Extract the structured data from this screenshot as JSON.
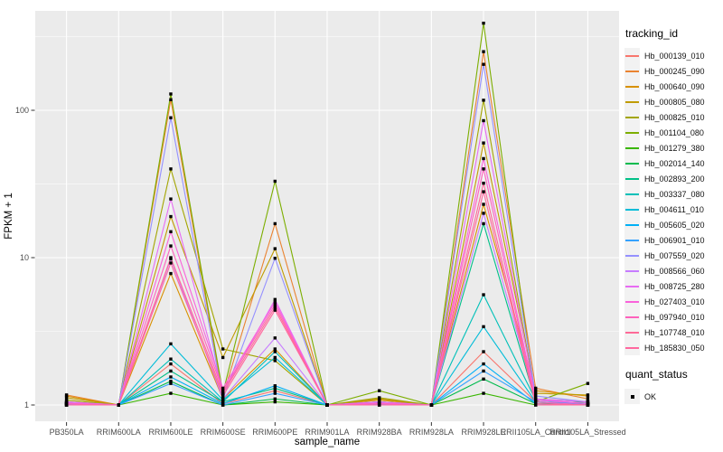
{
  "chart_data": {
    "type": "line",
    "title": "",
    "xlabel": "sample_name",
    "ylabel": "FPKM + 1",
    "y_scale": "log10",
    "y_ticks": [
      1,
      10,
      100
    ],
    "ylim": [
      0.9,
      500
    ],
    "grid": true,
    "legend_position": "right",
    "legend_title": "tracking_id",
    "legend2_title": "quant_status",
    "legend2_items": [
      "OK"
    ],
    "colors": {
      "panel_bg": "#EBEBEB",
      "grid": "#FFFFFF",
      "point": "#000000",
      "axis_text": "#4D4D4D",
      "tick": "#333333",
      "key_bg": "#F2F2F2"
    },
    "x_categories": [
      "PB350LA",
      "RRIM600LA",
      "RRIM600LE",
      "RRIM600SE",
      "RRIM600PE",
      "RRIM901LA",
      "RRIM928BA",
      "RRIM928LA",
      "RRIM928LE",
      "RRII105LA_Control",
      "RRII105LA_Stressed"
    ],
    "series": [
      {
        "name": "Hb_000139_010",
        "color": "#F8766D",
        "values": [
          1.05,
          1,
          1.9,
          1.02,
          1.25,
          1,
          1.05,
          1,
          2.3,
          1.05,
          1.02
        ]
      },
      {
        "name": "Hb_000245_090",
        "color": "#EA8331",
        "values": [
          1.17,
          1,
          118,
          1.15,
          17,
          1,
          1.1,
          1,
          250,
          1.3,
          1.1
        ]
      },
      {
        "name": "Hb_000640_090",
        "color": "#D89000",
        "values": [
          1.15,
          1,
          7.8,
          1.1,
          2.4,
          1,
          1.08,
          1,
          23,
          1.25,
          1.15
        ]
      },
      {
        "name": "Hb_000805_080",
        "color": "#C09B00",
        "values": [
          1.12,
          1,
          19,
          2.1,
          11.5,
          1,
          1.1,
          1,
          60,
          1.2,
          1.17
        ]
      },
      {
        "name": "Hb_000825_010",
        "color": "#A3A500",
        "values": [
          1.08,
          1,
          40,
          2.4,
          2.0,
          1,
          1.12,
          1,
          117,
          1.1,
          1.05
        ]
      },
      {
        "name": "Hb_001104_080",
        "color": "#7CAE00",
        "values": [
          1.02,
          1,
          129,
          1.2,
          33,
          1,
          1.25,
          1,
          390,
          1.05,
          1.4
        ]
      },
      {
        "name": "Hb_001279_380",
        "color": "#39B600",
        "values": [
          1.0,
          1,
          1.2,
          1.0,
          1.05,
          1,
          1.02,
          1,
          1.2,
          1.0,
          1.02
        ]
      },
      {
        "name": "Hb_002014_140",
        "color": "#00BB4E",
        "values": [
          1.0,
          1,
          1.45,
          1.0,
          1.1,
          1,
          1.05,
          1,
          1.5,
          1.02,
          1.05
        ]
      },
      {
        "name": "Hb_002893_200",
        "color": "#00C087",
        "values": [
          1.02,
          1,
          1.7,
          1.05,
          1.3,
          1,
          1.02,
          1,
          17,
          1.05,
          1.0
        ]
      },
      {
        "name": "Hb_003337_080",
        "color": "#00C0B8",
        "values": [
          1.03,
          1,
          2.05,
          1.05,
          2.3,
          1,
          1.05,
          1,
          5.6,
          1.08,
          1.02
        ]
      },
      {
        "name": "Hb_004611_010",
        "color": "#00BCD8",
        "values": [
          1.02,
          1,
          2.6,
          1.08,
          2.1,
          1,
          1.02,
          1,
          3.4,
          1.05,
          1.0
        ]
      },
      {
        "name": "Hb_005605_020",
        "color": "#00B0F6",
        "values": [
          1.0,
          1,
          1.55,
          1.02,
          1.35,
          1,
          1.0,
          1,
          1.9,
          1.02,
          1.0
        ]
      },
      {
        "name": "Hb_006901_010",
        "color": "#35A2FF",
        "values": [
          1.02,
          1,
          1.4,
          1.0,
          1.2,
          1,
          1.02,
          1,
          1.7,
          1.05,
          1.02
        ]
      },
      {
        "name": "Hb_007559_020",
        "color": "#9590FF",
        "values": [
          1.05,
          1,
          89,
          1.1,
          9.9,
          1,
          1.05,
          1,
          205,
          1.15,
          1.05
        ]
      },
      {
        "name": "Hb_008566_060",
        "color": "#C77CFF",
        "values": [
          1.02,
          1,
          9.8,
          1.1,
          2.85,
          1,
          1.02,
          1,
          20,
          1.1,
          1.02
        ]
      },
      {
        "name": "Hb_008725_280",
        "color": "#E76BF3",
        "values": [
          1.05,
          1,
          25,
          1.2,
          5.2,
          1,
          1.05,
          1,
          85,
          1.1,
          1.05
        ]
      },
      {
        "name": "Hb_027403_010",
        "color": "#FA62DB",
        "values": [
          1.03,
          1,
          15,
          1.3,
          5.0,
          1,
          1.03,
          1,
          47,
          1.08,
          1.02
        ]
      },
      {
        "name": "Hb_097940_010",
        "color": "#FF62BC",
        "values": [
          1.02,
          1,
          12,
          1.25,
          4.8,
          1,
          1.02,
          1,
          40,
          1.05,
          1.0
        ]
      },
      {
        "name": "Hb_107748_010",
        "color": "#FF6A98",
        "values": [
          1.0,
          1,
          10,
          1.2,
          4.6,
          1,
          1.0,
          1,
          32,
          1.02,
          1.0
        ]
      },
      {
        "name": "Hb_185830_050",
        "color": "#FF689F",
        "values": [
          1.0,
          1,
          9.2,
          1.15,
          4.4,
          1,
          1.0,
          1,
          28,
          1.0,
          1.0
        ]
      }
    ]
  }
}
